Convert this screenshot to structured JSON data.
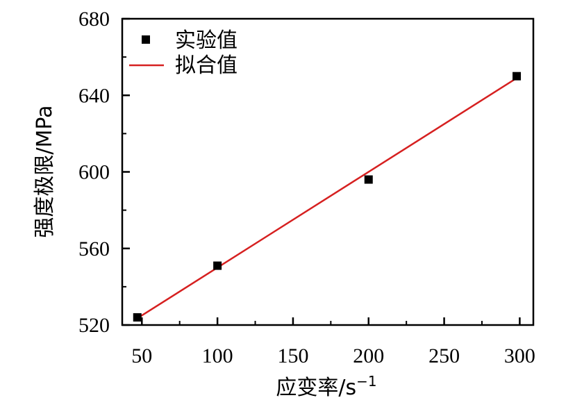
{
  "chart_data": {
    "type": "scatter",
    "xlabel": "应变率/s",
    "xlabel_superscript": "−1",
    "ylabel": "强度极限/MPa",
    "xlim": [
      37,
      309
    ],
    "ylim": [
      520,
      680
    ],
    "xticks": [
      50,
      100,
      150,
      200,
      250,
      300
    ],
    "yticks": [
      520,
      560,
      600,
      640,
      680
    ],
    "grid": false,
    "legend_position": "top-left",
    "series": [
      {
        "name": "实验值",
        "kind": "scatter",
        "marker": "square",
        "color": "#000000",
        "x": [
          47,
          100,
          200,
          298
        ],
        "y": [
          524,
          551,
          596,
          650
        ]
      },
      {
        "name": "拟合值",
        "kind": "line",
        "color": "#d62020",
        "x": [
          47,
          298
        ],
        "y": [
          523.5,
          649
        ]
      }
    ]
  }
}
